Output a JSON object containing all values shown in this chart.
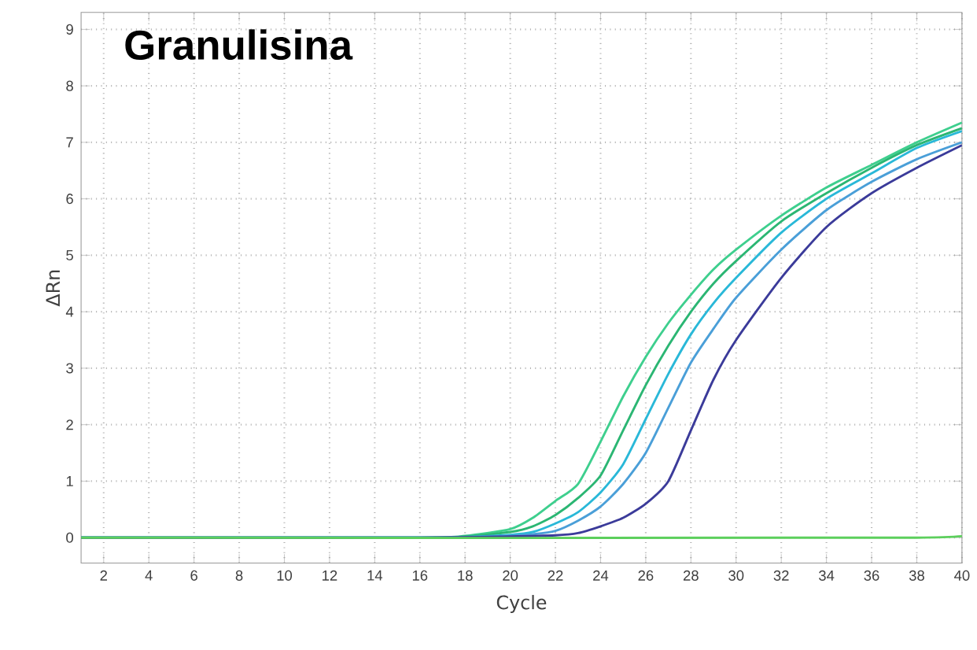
{
  "chart_data": {
    "type": "line",
    "title": "Granulisina",
    "xlabel": "Cycle",
    "ylabel": "ΔRn",
    "xlim": [
      1,
      40
    ],
    "ylim": [
      -0.45,
      9.3
    ],
    "xticks": [
      2,
      4,
      6,
      8,
      10,
      12,
      14,
      16,
      18,
      20,
      22,
      24,
      26,
      28,
      30,
      32,
      34,
      36,
      38,
      40
    ],
    "yticks": [
      0,
      1,
      2,
      3,
      4,
      5,
      6,
      7,
      8,
      9
    ],
    "grid": true,
    "marker": "none",
    "line_style": "solid",
    "series": [
      {
        "color": "#3ecf8e",
        "x": [
          1,
          16,
          18,
          20,
          21,
          22,
          23,
          24,
          25,
          26,
          27,
          28,
          29,
          30,
          32,
          34,
          36,
          38,
          40
        ],
        "values": [
          0,
          0,
          0.03,
          0.15,
          0.35,
          0.65,
          0.95,
          1.7,
          2.5,
          3.2,
          3.8,
          4.3,
          4.75,
          5.1,
          5.7,
          6.2,
          6.6,
          7.0,
          7.35
        ]
      },
      {
        "color": "#2bb673",
        "x": [
          1,
          16,
          18,
          20,
          21,
          22,
          23,
          24,
          25,
          26,
          27,
          28,
          29,
          30,
          32,
          34,
          36,
          38,
          40
        ],
        "values": [
          0,
          0,
          0.02,
          0.1,
          0.2,
          0.4,
          0.7,
          1.1,
          1.9,
          2.7,
          3.4,
          4.0,
          4.5,
          4.9,
          5.6,
          6.1,
          6.55,
          6.95,
          7.25
        ]
      },
      {
        "color": "#29b8d8",
        "x": [
          1,
          16,
          18,
          20,
          21,
          22,
          23,
          24,
          25,
          26,
          27,
          28,
          29,
          30,
          32,
          34,
          36,
          38,
          40
        ],
        "values": [
          0,
          0,
          0.01,
          0.05,
          0.1,
          0.25,
          0.45,
          0.8,
          1.3,
          2.1,
          2.9,
          3.6,
          4.15,
          4.6,
          5.4,
          6.0,
          6.45,
          6.9,
          7.2
        ]
      },
      {
        "color": "#4a9fd8",
        "x": [
          1,
          16,
          18,
          20,
          21,
          22,
          23,
          24,
          25,
          26,
          27,
          28,
          29,
          30,
          32,
          34,
          36,
          38,
          40
        ],
        "values": [
          0,
          0,
          0.01,
          0.03,
          0.06,
          0.12,
          0.3,
          0.55,
          0.95,
          1.5,
          2.3,
          3.1,
          3.7,
          4.25,
          5.1,
          5.8,
          6.3,
          6.7,
          7.0
        ]
      },
      {
        "color": "#3b3b9a",
        "x": [
          1,
          16,
          20,
          22,
          23,
          24,
          25,
          26,
          27,
          28,
          29,
          30,
          32,
          34,
          36,
          38,
          40
        ],
        "values": [
          0,
          0,
          0.02,
          0.04,
          0.08,
          0.2,
          0.35,
          0.6,
          1.0,
          1.9,
          2.8,
          3.5,
          4.6,
          5.5,
          6.1,
          6.55,
          6.95
        ]
      },
      {
        "color": "#5ccf5c",
        "x": [
          1,
          38,
          40
        ],
        "values": [
          0,
          0,
          0.15
        ]
      }
    ]
  }
}
